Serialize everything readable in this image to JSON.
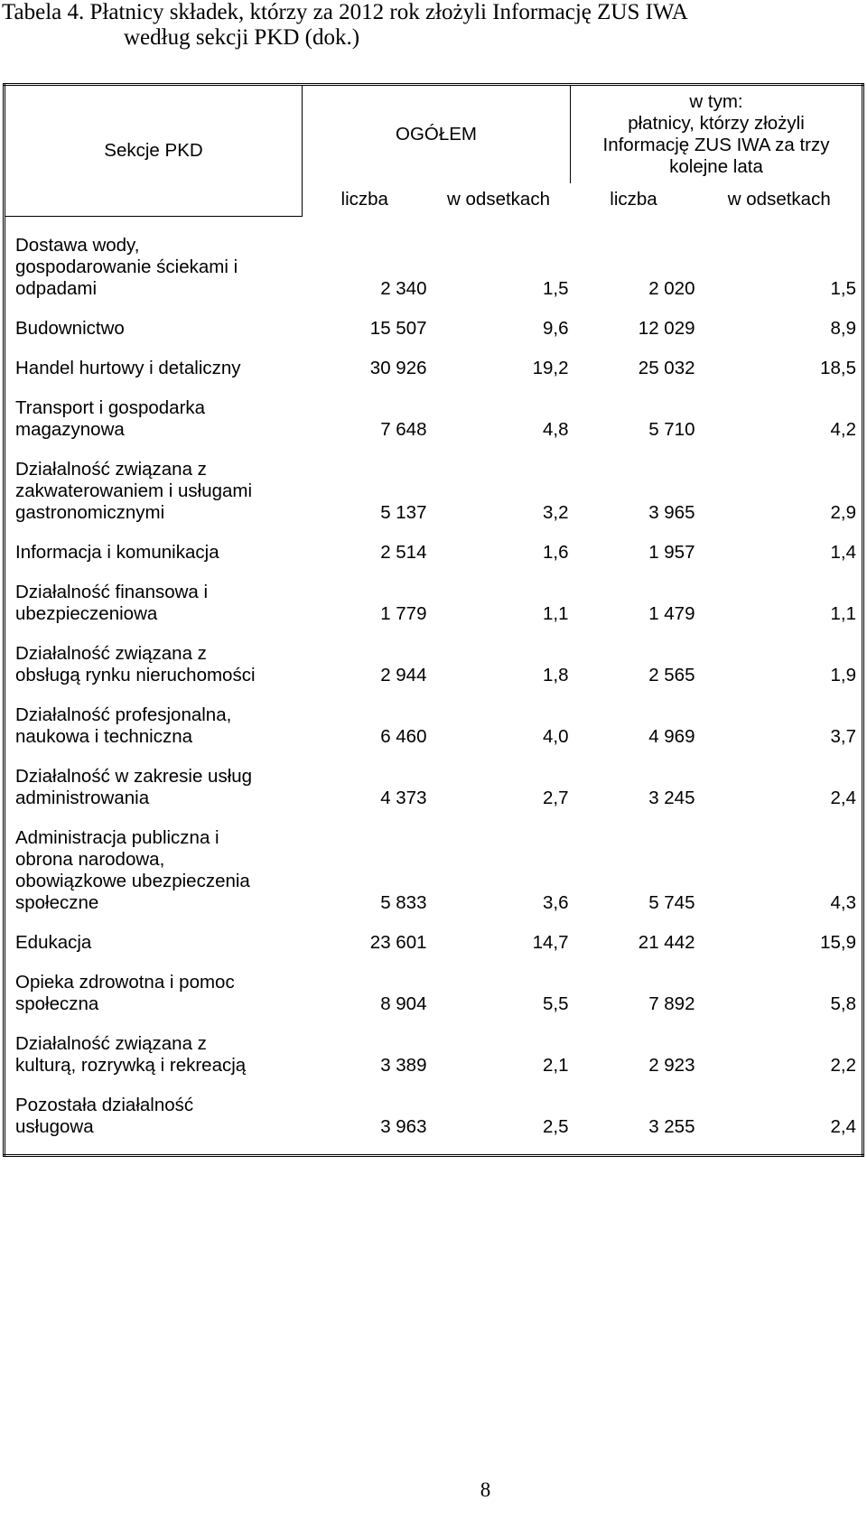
{
  "document": {
    "title_line1": "Tabela 4. Płatnicy składek, którzy za 2012 rok złożyli Informację ZUS IWA",
    "title_line2": "według sekcji PKD (dok.)",
    "page_number": "8"
  },
  "table": {
    "headers": {
      "sekcje": "Sekcje PKD",
      "ogolem": "OGÓŁEM",
      "wtym_line1": "w tym:",
      "wtym_line2": "płatnicy, którzy złożyli",
      "wtym_line3": "Informację ZUS IWA za trzy",
      "wtym_line4": "kolejne lata",
      "liczba1": "liczba",
      "odsetki1": "w odsetkach",
      "liczba2": "liczba",
      "odsetki2": "w odsetkach"
    },
    "rows": [
      {
        "name": [
          "Dostawa wody,",
          "gospodarowanie ściekami i",
          "odpadami"
        ],
        "ogolem_liczba": "2 340",
        "ogolem_odsetki": "1,5",
        "wtym_liczba": "2 020",
        "wtym_odsetki": "1,5"
      },
      {
        "name": [
          "Budownictwo"
        ],
        "ogolem_liczba": "15 507",
        "ogolem_odsetki": "9,6",
        "wtym_liczba": "12 029",
        "wtym_odsetki": "8,9"
      },
      {
        "name": [
          "Handel hurtowy i detaliczny"
        ],
        "ogolem_liczba": "30 926",
        "ogolem_odsetki": "19,2",
        "wtym_liczba": "25 032",
        "wtym_odsetki": "18,5"
      },
      {
        "name": [
          "Transport i gospodarka",
          "magazynowa"
        ],
        "ogolem_liczba": "7 648",
        "ogolem_odsetki": "4,8",
        "wtym_liczba": "5 710",
        "wtym_odsetki": "4,2"
      },
      {
        "name": [
          "Działalność związana z",
          "zakwaterowaniem i usługami",
          "gastronomicznymi"
        ],
        "ogolem_liczba": "5 137",
        "ogolem_odsetki": "3,2",
        "wtym_liczba": "3 965",
        "wtym_odsetki": "2,9"
      },
      {
        "name": [
          "Informacja i komunikacja"
        ],
        "ogolem_liczba": "2 514",
        "ogolem_odsetki": "1,6",
        "wtym_liczba": "1 957",
        "wtym_odsetki": "1,4"
      },
      {
        "name": [
          "Działalność finansowa i",
          "ubezpieczeniowa"
        ],
        "ogolem_liczba": "1 779",
        "ogolem_odsetki": "1,1",
        "wtym_liczba": "1 479",
        "wtym_odsetki": "1,1"
      },
      {
        "name": [
          "Działalność związana z",
          "obsługą rynku nieruchomości"
        ],
        "ogolem_liczba": "2 944",
        "ogolem_odsetki": "1,8",
        "wtym_liczba": "2 565",
        "wtym_odsetki": "1,9"
      },
      {
        "name": [
          "Działalność profesjonalna,",
          "naukowa i techniczna"
        ],
        "ogolem_liczba": "6 460",
        "ogolem_odsetki": "4,0",
        "wtym_liczba": "4 969",
        "wtym_odsetki": "3,7"
      },
      {
        "name": [
          "Działalność w zakresie usług",
          "administrowania"
        ],
        "ogolem_liczba": "4 373",
        "ogolem_odsetki": "2,7",
        "wtym_liczba": "3 245",
        "wtym_odsetki": "2,4"
      },
      {
        "name": [
          "Administracja publiczna i",
          "obrona narodowa,",
          "obowiązkowe ubezpieczenia",
          "społeczne"
        ],
        "ogolem_liczba": "5 833",
        "ogolem_odsetki": "3,6",
        "wtym_liczba": "5 745",
        "wtym_odsetki": "4,3"
      },
      {
        "name": [
          "Edukacja"
        ],
        "ogolem_liczba": "23 601",
        "ogolem_odsetki": "14,7",
        "wtym_liczba": "21 442",
        "wtym_odsetki": "15,9"
      },
      {
        "name": [
          "Opieka zdrowotna i pomoc",
          "społeczna"
        ],
        "ogolem_liczba": "8 904",
        "ogolem_odsetki": "5,5",
        "wtym_liczba": "7 892",
        "wtym_odsetki": "5,8"
      },
      {
        "name": [
          "Działalność związana z",
          "kulturą, rozrywką i rekreacją"
        ],
        "ogolem_liczba": "3 389",
        "ogolem_odsetki": "2,1",
        "wtym_liczba": "2 923",
        "wtym_odsetki": "2,2"
      },
      {
        "name": [
          "Pozostała działalność",
          "usługowa"
        ],
        "ogolem_liczba": "3 963",
        "ogolem_odsetki": "2,5",
        "wtym_liczba": "3 255",
        "wtym_odsetki": "2,4"
      }
    ]
  }
}
